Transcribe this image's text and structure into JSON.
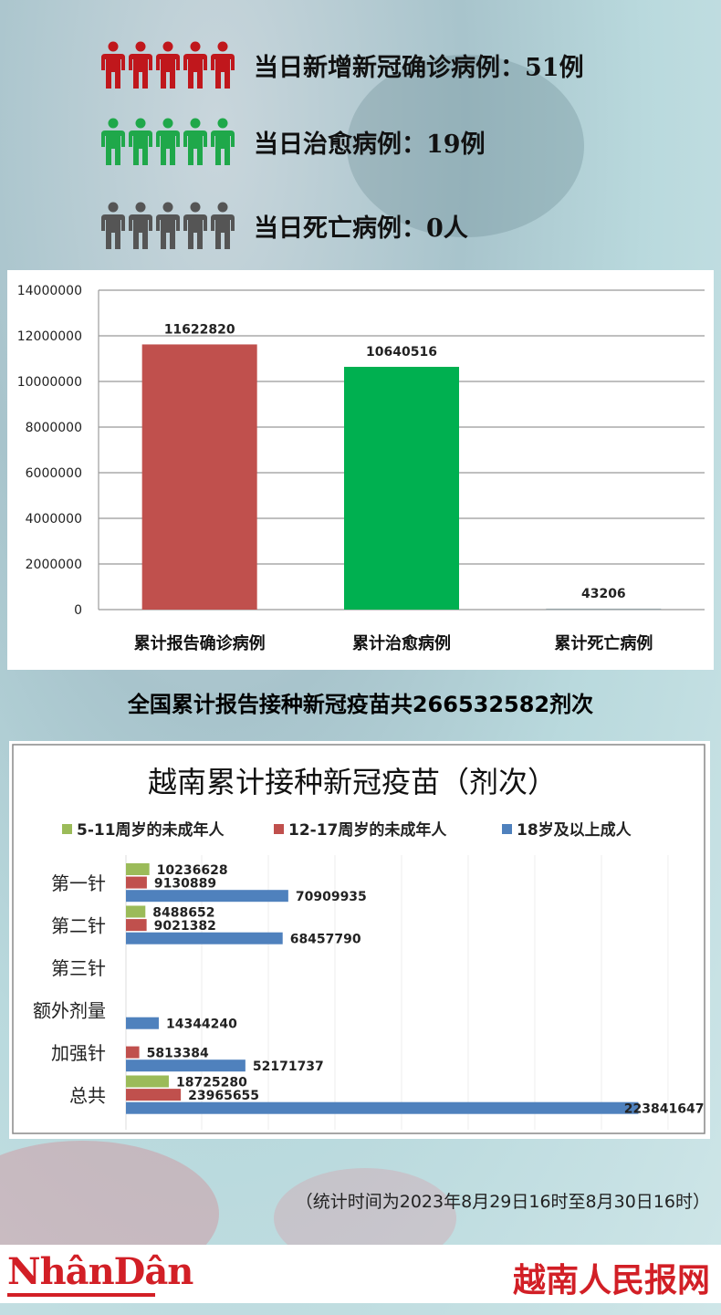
{
  "stats": [
    {
      "label": "当日新增新冠确诊病例：",
      "value": "51例",
      "color": "#c0171c"
    },
    {
      "label": "当日治愈病例：",
      "value": "19例",
      "color": "#1fa84a"
    },
    {
      "label": "当日死亡病例：",
      "value": "0人",
      "color": "#555555"
    }
  ],
  "headline": "全国累计报告接种新冠疫苗共266532582剂次",
  "footnote": "（统计时间为2023年8月29日16时至8月30日16时）",
  "logos": {
    "left": "NhânDân",
    "right": "越南人民报网"
  },
  "chart_data": [
    {
      "type": "bar",
      "categories": [
        "累计报告确诊病例",
        "累计治愈病例",
        "累计死亡病例"
      ],
      "values": [
        11622820,
        10640516,
        43206
      ],
      "colors": [
        "#c0504d",
        "#00b050",
        "#9aa5a8"
      ],
      "ylim": [
        0,
        14000000
      ],
      "yticks": [
        0,
        2000000,
        4000000,
        6000000,
        8000000,
        10000000,
        12000000,
        14000000
      ],
      "grid": true
    },
    {
      "type": "bar",
      "orientation": "horizontal",
      "title": "越南累计接种新冠疫苗（剂次）",
      "categories": [
        "第一针",
        "第二针",
        "第三针",
        "额外剂量",
        "加强针",
        "总共"
      ],
      "series": [
        {
          "name": "5-11周岁的未成年人",
          "color": "#9bbb59",
          "values": [
            10236628,
            8488652,
            null,
            null,
            null,
            18725280
          ]
        },
        {
          "name": "12-17周岁的未成年人",
          "color": "#c0504d",
          "values": [
            9130889,
            9021382,
            null,
            null,
            5813384,
            23965655
          ]
        },
        {
          "name": "18岁及以上成人",
          "color": "#4f81bd",
          "values": [
            70909935,
            68457790,
            null,
            14344240,
            52171737,
            223841647
          ]
        }
      ],
      "legend": "top",
      "grid": true
    }
  ]
}
